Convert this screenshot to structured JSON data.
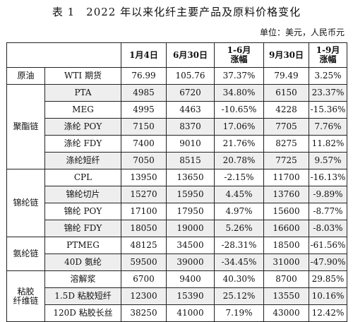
{
  "title": "表 1　2022 年以来化纤主要产品及原料价格变化",
  "unit": "单位：美元，人民币元",
  "table": {
    "headers": [
      "",
      "",
      "1月4日",
      "6月30日",
      "1-6月\n涨幅",
      "9月30日",
      "1-9月\n涨幅"
    ],
    "groups": [
      {
        "name": "原油",
        "rows": [
          {
            "product": "WTI 期货",
            "jan4": "76.99",
            "jun30": "105.76",
            "h1_change": "37.37%",
            "sep30": "79.49",
            "q3_change": "3.25%"
          }
        ]
      },
      {
        "name": "聚酯链",
        "rows": [
          {
            "product": "PTA",
            "jan4": "4985",
            "jun30": "6720",
            "h1_change": "34.80%",
            "sep30": "6150",
            "q3_change": "23.37%"
          },
          {
            "product": "MEG",
            "jan4": "4995",
            "jun30": "4463",
            "h1_change": "-10.65%",
            "sep30": "4228",
            "q3_change": "-15.36%"
          },
          {
            "product": "涤纶 POY",
            "jan4": "7150",
            "jun30": "8370",
            "h1_change": "17.06%",
            "sep30": "7705",
            "q3_change": "7.76%"
          },
          {
            "product": "涤纶 FDY",
            "jan4": "7400",
            "jun30": "9010",
            "h1_change": "21.76%",
            "sep30": "8275",
            "q3_change": "11.82%"
          },
          {
            "product": "涤纶短纤",
            "jan4": "7050",
            "jun30": "8515",
            "h1_change": "20.78%",
            "sep30": "7725",
            "q3_change": "9.57%"
          }
        ]
      },
      {
        "name": "锦纶链",
        "rows": [
          {
            "product": "CPL",
            "jan4": "13950",
            "jun30": "13650",
            "h1_change": "-2.15%",
            "sep30": "11700",
            "q3_change": "-16.13%"
          },
          {
            "product": "锦纶切片",
            "jan4": "15270",
            "jun30": "15950",
            "h1_change": "4.45%",
            "sep30": "13760",
            "q3_change": "-9.89%"
          },
          {
            "product": "锦纶 POY",
            "jan4": "17100",
            "jun30": "17950",
            "h1_change": "4.97%",
            "sep30": "15600",
            "q3_change": "-8.77%"
          },
          {
            "product": "锦纶 FDY",
            "jan4": "18050",
            "jun30": "19000",
            "h1_change": "5.26%",
            "sep30": "16600",
            "q3_change": "-8.03%"
          }
        ]
      },
      {
        "name": "氨纶链",
        "rows": [
          {
            "product": "PTMEG",
            "jan4": "48125",
            "jun30": "34500",
            "h1_change": "-28.31%",
            "sep30": "18500",
            "q3_change": "-61.56%"
          },
          {
            "product": "40D 氨纶",
            "jan4": "59500",
            "jun30": "39000",
            "h1_change": "-34.45%",
            "sep30": "31000",
            "q3_change": "-47.90%"
          }
        ]
      },
      {
        "name": "粘胶\n纤维链",
        "rows": [
          {
            "product": "溶解浆",
            "jan4": "6700",
            "jun30": "9400",
            "h1_change": "40.30%",
            "sep30": "8700",
            "q3_change": "29.85%"
          },
          {
            "product": "1.5D 粘胶短纤",
            "jan4": "12300",
            "jun30": "15390",
            "h1_change": "25.12%",
            "sep30": "13550",
            "q3_change": "10.16%"
          },
          {
            "product": "120D 粘胶长丝",
            "jan4": "38250",
            "jun30": "41000",
            "h1_change": "7.19%",
            "sep30": "43000",
            "q3_change": "12.42%"
          }
        ]
      }
    ]
  }
}
